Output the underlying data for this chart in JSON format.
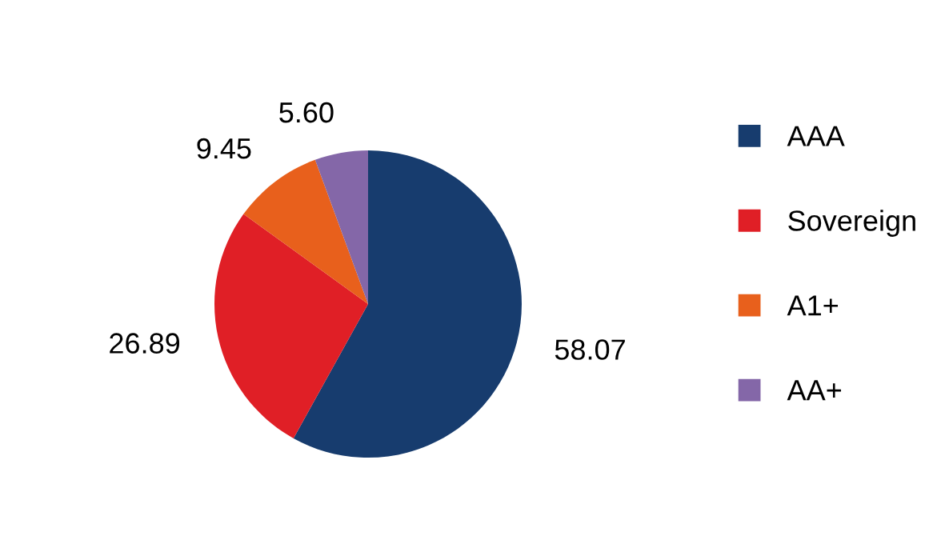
{
  "chart_data": {
    "type": "pie",
    "categories": [
      "AAA",
      "Sovereign",
      "A1+",
      "AA+"
    ],
    "values": [
      58.07,
      26.89,
      9.45,
      5.6
    ],
    "colors": [
      "#173c6e",
      "#e01f26",
      "#e8601c",
      "#8467a8"
    ],
    "value_labels": [
      "58.07",
      "26.89",
      "9.45",
      "5.60"
    ],
    "legend": "right"
  }
}
